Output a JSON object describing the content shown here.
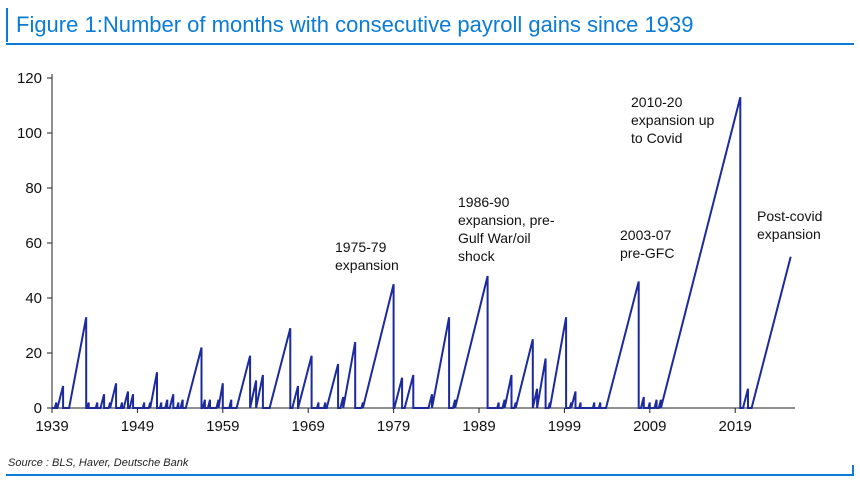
{
  "header": {
    "title": "Figure 1:Number of months with consecutive payroll gains since 1939"
  },
  "footer": {
    "source": "Source : BLS, Haver, Deutsche Bank"
  },
  "colors": {
    "accent": "#0a7bd6",
    "series": "#1c2a9c"
  },
  "chart_data": {
    "type": "line",
    "title": "Figure 1:Number of months with consecutive payroll gains since 1939",
    "xlabel": "",
    "ylabel": "",
    "xlim": [
      1939,
      2026
    ],
    "ylim": [
      0,
      120
    ],
    "xticks": [
      "1939",
      "1949",
      "1959",
      "1969",
      "1979",
      "1989",
      "1999",
      "2009",
      "2019"
    ],
    "yticks": [
      "0",
      "20",
      "40",
      "60",
      "80",
      "100",
      "120"
    ],
    "grid": false,
    "legend": "none",
    "series": [
      {
        "peaks": [
          [
            1939.5,
            2
          ],
          [
            1940.3,
            8
          ],
          [
            1941.0,
            0
          ],
          [
            1943.0,
            33
          ],
          [
            1943.3,
            2
          ],
          [
            1944.3,
            2
          ],
          [
            1945.1,
            5
          ],
          [
            1945.8,
            2
          ],
          [
            1946.5,
            9
          ],
          [
            1947.2,
            2
          ],
          [
            1947.9,
            6
          ],
          [
            1948.5,
            5
          ],
          [
            1949.8,
            2
          ],
          [
            1950.5,
            2
          ],
          [
            1951.3,
            13
          ],
          [
            1951.8,
            2
          ],
          [
            1952.5,
            3
          ],
          [
            1953.2,
            5
          ],
          [
            1953.8,
            2
          ],
          [
            1954.3,
            3
          ],
          [
            1956.5,
            22
          ],
          [
            1956.9,
            3
          ],
          [
            1957.5,
            3
          ],
          [
            1958.5,
            3
          ],
          [
            1959.0,
            9
          ],
          [
            1960.0,
            3
          ],
          [
            1962.2,
            19
          ],
          [
            1962.9,
            10
          ],
          [
            1963.7,
            12
          ],
          [
            1966.9,
            29
          ],
          [
            1967.8,
            8
          ],
          [
            1969.4,
            19
          ],
          [
            1970.2,
            2
          ],
          [
            1971.0,
            2
          ],
          [
            1972.5,
            16
          ],
          [
            1973.1,
            4
          ],
          [
            1974.5,
            24
          ],
          [
            1975.4,
            2
          ],
          [
            1979.0,
            45
          ],
          [
            1980.0,
            11
          ],
          [
            1981.3,
            12
          ],
          [
            1983.5,
            5
          ],
          [
            1985.5,
            33
          ],
          [
            1986.2,
            3
          ],
          [
            1990.0,
            48
          ],
          [
            1991.3,
            2
          ],
          [
            1992.0,
            3
          ],
          [
            1992.8,
            12
          ],
          [
            1993.3,
            2
          ],
          [
            1995.3,
            25
          ],
          [
            1995.8,
            7
          ],
          [
            1996.8,
            18
          ],
          [
            1997.3,
            2
          ],
          [
            1999.2,
            33
          ],
          [
            1999.8,
            2
          ],
          [
            2000.3,
            6
          ],
          [
            2000.9,
            2
          ],
          [
            2002.5,
            2
          ],
          [
            2003.2,
            2
          ],
          [
            2007.7,
            46
          ],
          [
            2008.3,
            4
          ],
          [
            2009.0,
            2
          ],
          [
            2009.8,
            3
          ],
          [
            2010.3,
            3
          ],
          [
            2019.6,
            113
          ],
          [
            2020.5,
            7
          ],
          [
            2025.5,
            55
          ]
        ]
      }
    ],
    "annotations": [
      {
        "lines": [
          "1975-79",
          "expansion"
        ]
      },
      {
        "lines": [
          "1986-90",
          "expansion, pre-",
          "Gulf War/oil",
          "shock"
        ]
      },
      {
        "lines": [
          "2003-07",
          "pre-GFC"
        ]
      },
      {
        "lines": [
          "2010-20",
          "expansion up",
          "to Covid"
        ]
      },
      {
        "lines": [
          "Post-covid",
          "expansion"
        ]
      }
    ]
  }
}
